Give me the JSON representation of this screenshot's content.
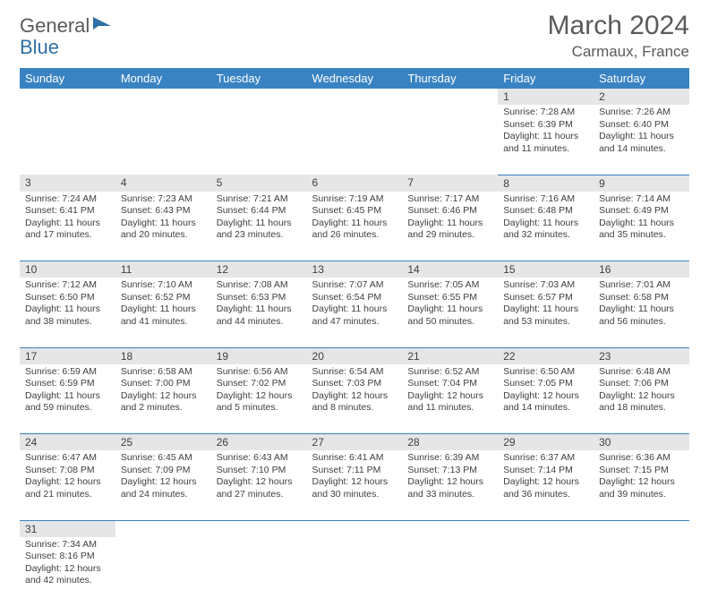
{
  "logo": {
    "text1": "General",
    "text2": "Blue"
  },
  "title": "March 2024",
  "location": "Carmaux, France",
  "colors": {
    "header_bg": "#3983c3",
    "header_fg": "#ffffff",
    "daynum_bg": "#e6e6e6",
    "text": "#404040",
    "rule": "#3983c3"
  },
  "weekdays": [
    "Sunday",
    "Monday",
    "Tuesday",
    "Wednesday",
    "Thursday",
    "Friday",
    "Saturday"
  ],
  "weeks": [
    [
      null,
      null,
      null,
      null,
      null,
      {
        "n": "1",
        "sr": "Sunrise: 7:28 AM",
        "ss": "Sunset: 6:39 PM",
        "dl": "Daylight: 11 hours and 11 minutes."
      },
      {
        "n": "2",
        "sr": "Sunrise: 7:26 AM",
        "ss": "Sunset: 6:40 PM",
        "dl": "Daylight: 11 hours and 14 minutes."
      }
    ],
    [
      {
        "n": "3",
        "sr": "Sunrise: 7:24 AM",
        "ss": "Sunset: 6:41 PM",
        "dl": "Daylight: 11 hours and 17 minutes."
      },
      {
        "n": "4",
        "sr": "Sunrise: 7:23 AM",
        "ss": "Sunset: 6:43 PM",
        "dl": "Daylight: 11 hours and 20 minutes."
      },
      {
        "n": "5",
        "sr": "Sunrise: 7:21 AM",
        "ss": "Sunset: 6:44 PM",
        "dl": "Daylight: 11 hours and 23 minutes."
      },
      {
        "n": "6",
        "sr": "Sunrise: 7:19 AM",
        "ss": "Sunset: 6:45 PM",
        "dl": "Daylight: 11 hours and 26 minutes."
      },
      {
        "n": "7",
        "sr": "Sunrise: 7:17 AM",
        "ss": "Sunset: 6:46 PM",
        "dl": "Daylight: 11 hours and 29 minutes."
      },
      {
        "n": "8",
        "sr": "Sunrise: 7:16 AM",
        "ss": "Sunset: 6:48 PM",
        "dl": "Daylight: 11 hours and 32 minutes."
      },
      {
        "n": "9",
        "sr": "Sunrise: 7:14 AM",
        "ss": "Sunset: 6:49 PM",
        "dl": "Daylight: 11 hours and 35 minutes."
      }
    ],
    [
      {
        "n": "10",
        "sr": "Sunrise: 7:12 AM",
        "ss": "Sunset: 6:50 PM",
        "dl": "Daylight: 11 hours and 38 minutes."
      },
      {
        "n": "11",
        "sr": "Sunrise: 7:10 AM",
        "ss": "Sunset: 6:52 PM",
        "dl": "Daylight: 11 hours and 41 minutes."
      },
      {
        "n": "12",
        "sr": "Sunrise: 7:08 AM",
        "ss": "Sunset: 6:53 PM",
        "dl": "Daylight: 11 hours and 44 minutes."
      },
      {
        "n": "13",
        "sr": "Sunrise: 7:07 AM",
        "ss": "Sunset: 6:54 PM",
        "dl": "Daylight: 11 hours and 47 minutes."
      },
      {
        "n": "14",
        "sr": "Sunrise: 7:05 AM",
        "ss": "Sunset: 6:55 PM",
        "dl": "Daylight: 11 hours and 50 minutes."
      },
      {
        "n": "15",
        "sr": "Sunrise: 7:03 AM",
        "ss": "Sunset: 6:57 PM",
        "dl": "Daylight: 11 hours and 53 minutes."
      },
      {
        "n": "16",
        "sr": "Sunrise: 7:01 AM",
        "ss": "Sunset: 6:58 PM",
        "dl": "Daylight: 11 hours and 56 minutes."
      }
    ],
    [
      {
        "n": "17",
        "sr": "Sunrise: 6:59 AM",
        "ss": "Sunset: 6:59 PM",
        "dl": "Daylight: 11 hours and 59 minutes."
      },
      {
        "n": "18",
        "sr": "Sunrise: 6:58 AM",
        "ss": "Sunset: 7:00 PM",
        "dl": "Daylight: 12 hours and 2 minutes."
      },
      {
        "n": "19",
        "sr": "Sunrise: 6:56 AM",
        "ss": "Sunset: 7:02 PM",
        "dl": "Daylight: 12 hours and 5 minutes."
      },
      {
        "n": "20",
        "sr": "Sunrise: 6:54 AM",
        "ss": "Sunset: 7:03 PM",
        "dl": "Daylight: 12 hours and 8 minutes."
      },
      {
        "n": "21",
        "sr": "Sunrise: 6:52 AM",
        "ss": "Sunset: 7:04 PM",
        "dl": "Daylight: 12 hours and 11 minutes."
      },
      {
        "n": "22",
        "sr": "Sunrise: 6:50 AM",
        "ss": "Sunset: 7:05 PM",
        "dl": "Daylight: 12 hours and 14 minutes."
      },
      {
        "n": "23",
        "sr": "Sunrise: 6:48 AM",
        "ss": "Sunset: 7:06 PM",
        "dl": "Daylight: 12 hours and 18 minutes."
      }
    ],
    [
      {
        "n": "24",
        "sr": "Sunrise: 6:47 AM",
        "ss": "Sunset: 7:08 PM",
        "dl": "Daylight: 12 hours and 21 minutes."
      },
      {
        "n": "25",
        "sr": "Sunrise: 6:45 AM",
        "ss": "Sunset: 7:09 PM",
        "dl": "Daylight: 12 hours and 24 minutes."
      },
      {
        "n": "26",
        "sr": "Sunrise: 6:43 AM",
        "ss": "Sunset: 7:10 PM",
        "dl": "Daylight: 12 hours and 27 minutes."
      },
      {
        "n": "27",
        "sr": "Sunrise: 6:41 AM",
        "ss": "Sunset: 7:11 PM",
        "dl": "Daylight: 12 hours and 30 minutes."
      },
      {
        "n": "28",
        "sr": "Sunrise: 6:39 AM",
        "ss": "Sunset: 7:13 PM",
        "dl": "Daylight: 12 hours and 33 minutes."
      },
      {
        "n": "29",
        "sr": "Sunrise: 6:37 AM",
        "ss": "Sunset: 7:14 PM",
        "dl": "Daylight: 12 hours and 36 minutes."
      },
      {
        "n": "30",
        "sr": "Sunrise: 6:36 AM",
        "ss": "Sunset: 7:15 PM",
        "dl": "Daylight: 12 hours and 39 minutes."
      }
    ],
    [
      {
        "n": "31",
        "sr": "Sunrise: 7:34 AM",
        "ss": "Sunset: 8:16 PM",
        "dl": "Daylight: 12 hours and 42 minutes."
      },
      null,
      null,
      null,
      null,
      null,
      null
    ]
  ]
}
